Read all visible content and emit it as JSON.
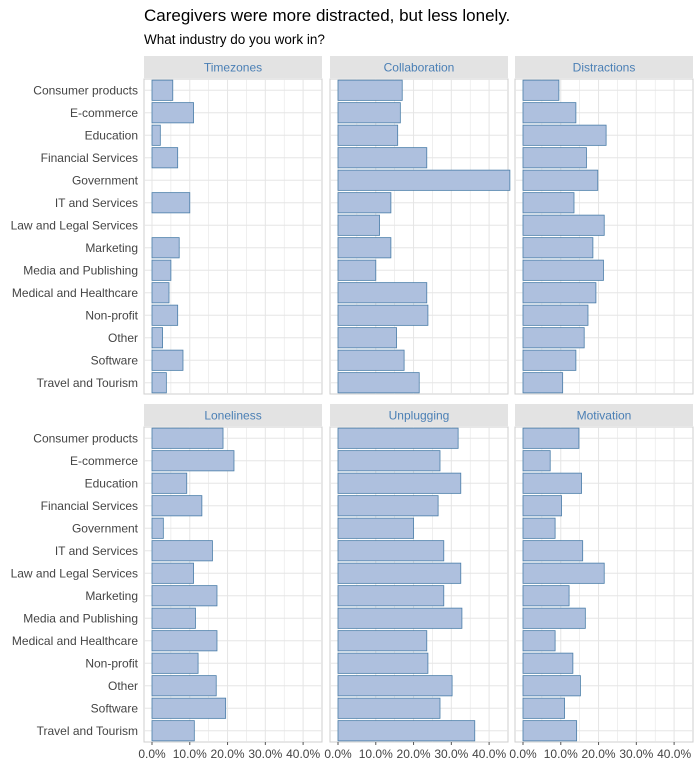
{
  "title": "Caregivers were more distracted, but less lonely.",
  "subtitle": "What industry do you work in?",
  "colors": {
    "bar_fill": "#aec0de",
    "bar_stroke": "#4a7da8",
    "strip_bg": "#e3e3e3",
    "strip_text": "#4a7fb5",
    "grid": "#e5e5e5",
    "panel_border": "#cfcfcf"
  },
  "chart_data": {
    "type": "bar",
    "orientation": "horizontal",
    "grid": true,
    "xlim": [
      0,
      0.45
    ],
    "x_ticks": [
      0,
      0.1,
      0.2,
      0.3,
      0.4
    ],
    "x_tick_labels": [
      "0.0%",
      "10.0%",
      "20.0%",
      "30.0%",
      "40.0%"
    ],
    "categories": [
      "Consumer products",
      "E-commerce",
      "Education",
      "Financial Services",
      "Government",
      "IT and Services",
      "Law and Legal Services",
      "Marketing",
      "Media and Publishing",
      "Medical and Healthcare",
      "Non-profit",
      "Other",
      "Software",
      "Travel and Tourism"
    ],
    "panels": [
      {
        "name": "Timezones",
        "values": [
          0.055,
          0.11,
          0.022,
          0.068,
          0.0,
          0.1,
          0.0,
          0.072,
          0.05,
          0.045,
          0.068,
          0.028,
          0.082,
          0.038
        ]
      },
      {
        "name": "Collaboration",
        "values": [
          0.17,
          0.165,
          0.158,
          0.235,
          0.455,
          0.14,
          0.11,
          0.14,
          0.1,
          0.235,
          0.238,
          0.155,
          0.175,
          0.215
        ]
      },
      {
        "name": "Distractions",
        "values": [
          0.095,
          0.14,
          0.22,
          0.168,
          0.198,
          0.135,
          0.215,
          0.185,
          0.213,
          0.193,
          0.172,
          0.162,
          0.14,
          0.105
        ]
      },
      {
        "name": "Loneliness",
        "values": [
          0.188,
          0.217,
          0.092,
          0.132,
          0.03,
          0.16,
          0.11,
          0.172,
          0.115,
          0.172,
          0.122,
          0.17,
          0.195,
          0.112
        ]
      },
      {
        "name": "Unplugging",
        "values": [
          0.318,
          0.27,
          0.325,
          0.265,
          0.2,
          0.28,
          0.325,
          0.28,
          0.328,
          0.235,
          0.238,
          0.302,
          0.27,
          0.362
        ]
      },
      {
        "name": "Motivation",
        "values": [
          0.148,
          0.072,
          0.155,
          0.102,
          0.085,
          0.158,
          0.215,
          0.122,
          0.165,
          0.085,
          0.132,
          0.152,
          0.11,
          0.142
        ]
      }
    ]
  }
}
